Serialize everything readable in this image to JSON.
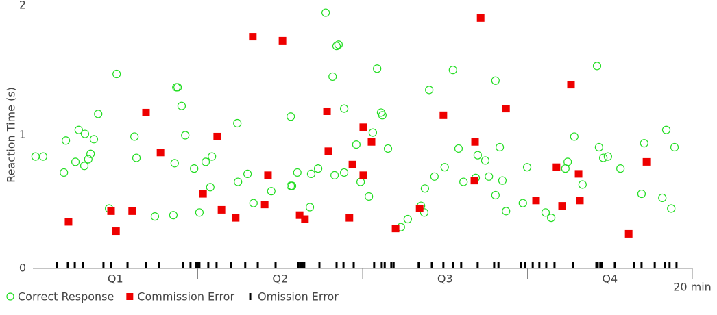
{
  "chart_data": {
    "type": "scatter",
    "ylabel": "Reaction Time (s)",
    "xlim": [
      0,
      20
    ],
    "ylim": [
      0,
      2
    ],
    "yticks": [
      0,
      1,
      2
    ],
    "xticks": [
      {
        "value": 5
      },
      {
        "value": 10
      },
      {
        "value": 15
      },
      {
        "value": 20,
        "label": "20 min"
      }
    ],
    "quarters": [
      {
        "value": 2.5,
        "label": "Q1"
      },
      {
        "value": 7.5,
        "label": "Q2"
      },
      {
        "value": 12.5,
        "label": "Q3"
      },
      {
        "value": 17.5,
        "label": "Q4"
      }
    ],
    "grid": false,
    "legend": "bottom-left",
    "series": [
      {
        "name": "Correct Response",
        "color": "#22dd22",
        "marker": "circle",
        "x": [
          0.08,
          0.31,
          0.94,
          1.0,
          1.29,
          1.39,
          1.56,
          1.58,
          1.68,
          1.75,
          1.85,
          1.98,
          2.31,
          2.54,
          3.08,
          3.14,
          3.7,
          4.26,
          4.3,
          4.35,
          4.39,
          4.51,
          4.62,
          4.89,
          5.05,
          5.24,
          5.38,
          5.43,
          6.2,
          6.22,
          6.51,
          6.69,
          7.23,
          7.82,
          7.82,
          7.86,
          8.02,
          8.4,
          8.44,
          8.65,
          8.88,
          9.09,
          9.15,
          9.21,
          9.27,
          9.44,
          9.44,
          9.81,
          9.94,
          10.19,
          10.31,
          10.44,
          10.56,
          10.6,
          10.77,
          11.16,
          11.37,
          11.77,
          11.87,
          11.89,
          12.02,
          12.18,
          12.49,
          12.74,
          12.91,
          13.06,
          13.43,
          13.49,
          13.72,
          13.83,
          14.03,
          14.03,
          14.16,
          14.24,
          14.35,
          14.86,
          14.99,
          15.55,
          15.72,
          16.15,
          16.22,
          16.42,
          16.67,
          17.11,
          17.17,
          17.3,
          17.44,
          17.82,
          18.46,
          18.54,
          19.09,
          19.21,
          19.36,
          19.46
        ],
        "values": [
          0.84,
          0.84,
          0.72,
          0.96,
          0.8,
          1.04,
          0.77,
          1.01,
          0.82,
          0.86,
          0.97,
          1.16,
          0.45,
          1.46,
          0.99,
          0.83,
          0.39,
          0.4,
          0.79,
          1.36,
          1.36,
          1.22,
          1.0,
          0.75,
          0.42,
          0.8,
          0.61,
          0.84,
          1.09,
          0.65,
          0.71,
          0.49,
          0.58,
          1.14,
          0.62,
          0.62,
          0.72,
          0.46,
          0.71,
          0.75,
          1.92,
          1.44,
          0.7,
          1.67,
          1.68,
          1.2,
          0.72,
          0.93,
          0.65,
          0.54,
          1.02,
          1.5,
          1.17,
          1.15,
          0.9,
          0.31,
          0.37,
          0.47,
          0.42,
          0.6,
          1.34,
          0.69,
          0.76,
          1.49,
          0.9,
          0.65,
          0.68,
          0.85,
          0.81,
          0.69,
          0.55,
          1.41,
          0.91,
          0.66,
          0.43,
          0.49,
          0.76,
          0.42,
          0.38,
          0.75,
          0.8,
          0.99,
          0.63,
          1.52,
          0.91,
          0.83,
          0.84,
          0.75,
          0.56,
          0.94,
          0.53,
          1.04,
          0.45,
          0.91
        ]
      },
      {
        "name": "Commission Error",
        "color": "#ee0000",
        "marker": "square",
        "x": [
          1.08,
          2.37,
          2.52,
          3.01,
          3.43,
          3.87,
          5.16,
          5.59,
          5.72,
          6.15,
          6.67,
          7.03,
          7.13,
          7.57,
          8.09,
          8.25,
          8.92,
          8.96,
          9.6,
          9.69,
          10.02,
          10.02,
          10.27,
          11.0,
          11.73,
          12.45,
          13.39,
          13.41,
          13.58,
          14.35,
          15.26,
          15.88,
          16.05,
          16.32,
          16.55,
          16.59,
          18.07,
          18.61
        ],
        "values": [
          0.35,
          0.43,
          0.28,
          0.43,
          1.17,
          0.87,
          0.56,
          0.99,
          0.44,
          0.38,
          1.74,
          0.48,
          0.7,
          1.71,
          0.4,
          0.37,
          1.18,
          0.88,
          0.38,
          0.78,
          1.06,
          0.7,
          0.95,
          0.3,
          0.45,
          1.15,
          0.66,
          0.95,
          1.88,
          1.2,
          0.51,
          0.76,
          0.47,
          1.38,
          0.71,
          0.51,
          0.26,
          0.8
        ]
      },
      {
        "name": "Omission Error",
        "color": "#000000",
        "marker": "tick",
        "x": [
          0.73,
          1.06,
          1.27,
          1.52,
          2.14,
          2.37,
          2.87,
          3.43,
          3.83,
          4.55,
          4.78,
          4.95,
          4.99,
          5.05,
          5.32,
          5.57,
          6.01,
          6.44,
          6.82,
          7.36,
          8.05,
          8.11,
          8.17,
          8.23,
          8.69,
          9.21,
          9.42,
          9.73,
          10.35,
          10.58,
          10.67,
          10.87,
          10.94,
          11.7,
          12.1,
          12.45,
          12.74,
          12.99,
          13.49,
          13.99,
          14.12,
          14.8,
          14.93,
          15.16,
          15.36,
          15.57,
          15.82,
          16.38,
          17.09,
          17.13,
          17.21,
          17.26,
          17.65,
          18.23,
          18.46,
          18.86,
          19.17,
          19.31,
          19.52
        ]
      }
    ]
  }
}
